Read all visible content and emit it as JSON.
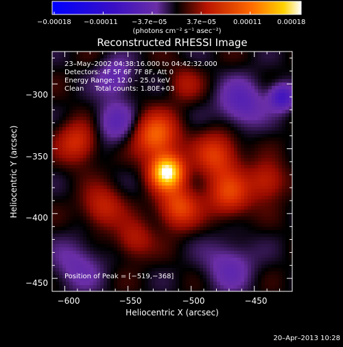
{
  "chart_data": {
    "type": "heatmap",
    "title": "Reconstructed RHESSI Image",
    "xlabel": "Heliocentric X (arcsec)",
    "ylabel": "Heliocentric Y (arcsec)",
    "xlim": [
      -610,
      -420
    ],
    "ylim": [
      -460,
      -275
    ],
    "xticks": [
      -600,
      -550,
      -500,
      -450
    ],
    "yticks": [
      -300,
      -350,
      -400,
      -450
    ],
    "xtick_labels": [
      "−600",
      "−550",
      "−500",
      "−450"
    ],
    "ytick_labels": [
      "−300",
      "−350",
      "−400",
      "−450"
    ],
    "colorbar": {
      "range": [
        -0.00018,
        0.00018
      ],
      "tick_labels": [
        "−0.00018",
        "−0.00011",
        "−3.7e−05",
        "3.7e−05",
        "0.00011",
        "0.00018"
      ],
      "unit_label": "(photons cm⁻² s⁻¹ asec⁻²)",
      "colormap": [
        "#0000ff",
        "#4010c0",
        "#6a2ea6",
        "#000000",
        "#c81e00",
        "#ff6a00",
        "#ffffff"
      ]
    },
    "annotations": [
      "23–May–2002 04:38:16.000 to 04:42:32.000",
      "Detectors: 4F 5F 6F 7F 8F, Att 0",
      "Energy Range: 12.0 – 25.0 keV",
      "Clean     Total counts: 1.80E+03"
    ],
    "peak_label": "Position of Peak = [−519,−368]",
    "peak_position": [
      -519,
      -368
    ],
    "sources": [
      {
        "x": -519,
        "y": -368,
        "amp": 1.0,
        "sigma": 9
      },
      {
        "x": -528,
        "y": -340,
        "amp": 0.55,
        "sigma": 12
      },
      {
        "x": -510,
        "y": -395,
        "amp": 0.45,
        "sigma": 11
      },
      {
        "x": -480,
        "y": -355,
        "amp": 0.4,
        "sigma": 12
      },
      {
        "x": -470,
        "y": -385,
        "amp": 0.4,
        "sigma": 12
      },
      {
        "x": -440,
        "y": -375,
        "amp": 0.3,
        "sigma": 10
      },
      {
        "x": -590,
        "y": -345,
        "amp": 0.35,
        "sigma": 11
      },
      {
        "x": -570,
        "y": -395,
        "amp": 0.3,
        "sigma": 11
      },
      {
        "x": -545,
        "y": -420,
        "amp": 0.25,
        "sigma": 10
      },
      {
        "x": -505,
        "y": -300,
        "amp": 0.2,
        "sigma": 9
      },
      {
        "x": -560,
        "y": -330,
        "amp": -0.25,
        "sigma": 12
      },
      {
        "x": -460,
        "y": -315,
        "amp": -0.3,
        "sigma": 13
      },
      {
        "x": -590,
        "y": -440,
        "amp": -0.2,
        "sigma": 14
      },
      {
        "x": -470,
        "y": -440,
        "amp": -0.22,
        "sigma": 14
      },
      {
        "x": -428,
        "y": -310,
        "amp": -0.45,
        "sigma": 7
      },
      {
        "x": -560,
        "y": -295,
        "amp": -0.25,
        "sigma": 10
      }
    ]
  },
  "footer": {
    "date": "20–Apr–2013 10:28"
  }
}
